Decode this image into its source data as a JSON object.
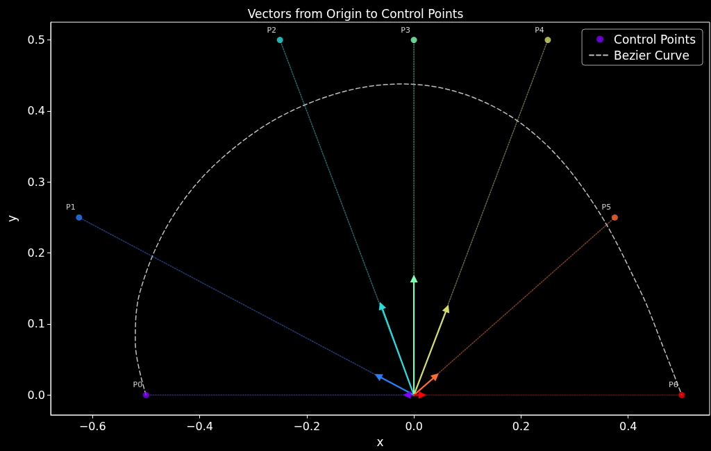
{
  "chart_data": {
    "type": "line",
    "title": "Vectors from Origin to Control Points",
    "xlabel": "x",
    "ylabel": "y",
    "xlim": [
      -0.678,
      0.552
    ],
    "ylim": [
      -0.028,
      0.525
    ],
    "xticks": [
      {
        "value": -0.6,
        "label": "−0.6"
      },
      {
        "value": -0.4,
        "label": "−0.4"
      },
      {
        "value": -0.2,
        "label": "−0.2"
      },
      {
        "value": 0,
        "label": "0.0"
      },
      {
        "value": 0.2,
        "label": "0.2"
      },
      {
        "value": 0.4,
        "label": "0.4"
      }
    ],
    "yticks": [
      {
        "value": 0,
        "label": "0.0"
      },
      {
        "value": 0.1,
        "label": "0.1"
      },
      {
        "value": 0.2,
        "label": "0.2"
      },
      {
        "value": 0.3,
        "label": "0.3"
      },
      {
        "value": 0.4,
        "label": "0.4"
      },
      {
        "value": 0.5,
        "label": "0.5"
      }
    ],
    "grid": false,
    "legend": "top right",
    "series": [
      {
        "type": "line",
        "line_style": "dotted",
        "color": "#3c1f7a",
        "x": [
          0,
          -0.5
        ],
        "values": [
          0,
          0
        ]
      },
      {
        "type": "line",
        "line_style": "dotted",
        "color": "#1e3f7c",
        "x": [
          0,
          -0.625
        ],
        "values": [
          0,
          0.25
        ]
      },
      {
        "type": "line",
        "line_style": "dotted",
        "color": "#1f6f6f",
        "x": [
          0,
          -0.25
        ],
        "values": [
          0,
          0.5
        ]
      },
      {
        "type": "line",
        "line_style": "dotted",
        "color": "#3f805a",
        "x": [
          0,
          0
        ],
        "values": [
          0,
          0.5
        ]
      },
      {
        "type": "line",
        "line_style": "dotted",
        "color": "#6a6e40",
        "x": [
          0,
          0.25
        ],
        "values": [
          0,
          0.5
        ]
      },
      {
        "type": "line",
        "line_style": "dotted",
        "color": "#803f20",
        "x": [
          0,
          0.375
        ],
        "values": [
          0,
          0.25
        ]
      },
      {
        "type": "line",
        "line_style": "dotted",
        "color": "#800000",
        "x": [
          0,
          0.5
        ],
        "values": [
          0,
          0
        ]
      },
      {
        "name": "Bezier Curve",
        "line_style": "dashed",
        "marker": "none",
        "color": "#bfbfbf",
        "x": [
          -0.5,
          -0.52,
          -0.511,
          -0.434,
          -0.31,
          -0.167,
          -0.023,
          0.111,
          0.232,
          0.335,
          0.423,
          0.462,
          0.5
        ],
        "values": [
          0,
          0.074,
          0.146,
          0.27,
          0.363,
          0.419,
          0.438,
          0.419,
          0.363,
          0.27,
          0.146,
          0.074,
          0
        ]
      },
      {
        "type": "line",
        "marker": "triangle",
        "color": "#8000ff",
        "x": [
          0,
          -0.013
        ],
        "values": [
          0,
          0
        ]
      },
      {
        "type": "line",
        "marker": "triangle",
        "color": "#2c7ef7",
        "x": [
          0,
          -0.067
        ],
        "values": [
          0,
          0.027
        ]
      },
      {
        "type": "line",
        "marker": "triangle",
        "color": "#2adddd",
        "x": [
          0,
          -0.061
        ],
        "values": [
          0,
          0.126
        ]
      },
      {
        "type": "line",
        "marker": "triangle",
        "color": "#80ffb4",
        "x": [
          0,
          0
        ],
        "values": [
          0,
          0.164
        ]
      },
      {
        "type": "line",
        "marker": "triangle",
        "color": "#d4dd6a",
        "x": [
          0,
          0.062
        ],
        "values": [
          0,
          0.122
        ]
      },
      {
        "type": "line",
        "marker": "triangle",
        "color": "#ff6a35",
        "x": [
          0,
          0.041
        ],
        "values": [
          0,
          0.027
        ]
      },
      {
        "type": "line",
        "marker": "triangle",
        "color": "#ff0000",
        "x": [
          0,
          0.016
        ],
        "values": [
          0,
          0
        ]
      },
      {
        "type": "scatter",
        "name": "Control Points",
        "marker": "circle",
        "colors": [
          "#8000ff",
          "#2c7ef7",
          "#2adddd",
          "#80ffb4",
          "#d4dd6a",
          "#ff6a35",
          "#ff0000"
        ],
        "x": [
          -0.5,
          -0.625,
          -0.25,
          0,
          0.25,
          0.375,
          0.5
        ],
        "values": [
          0,
          0.25,
          0.5,
          0.5,
          0.5,
          0.25,
          0
        ]
      }
    ],
    "annotations": [
      {
        "text": "P0",
        "x": -0.5,
        "y": 0
      },
      {
        "text": "P1",
        "x": -0.625,
        "y": 0.25
      },
      {
        "text": "P2",
        "x": -0.25,
        "y": 0.5
      },
      {
        "text": "P3",
        "x": 0,
        "y": 0.5
      },
      {
        "text": "P4",
        "x": 0.25,
        "y": 0.5
      },
      {
        "text": "P5",
        "x": 0.375,
        "y": 0.25
      },
      {
        "text": "P6",
        "x": 0.5,
        "y": 0
      }
    ]
  }
}
